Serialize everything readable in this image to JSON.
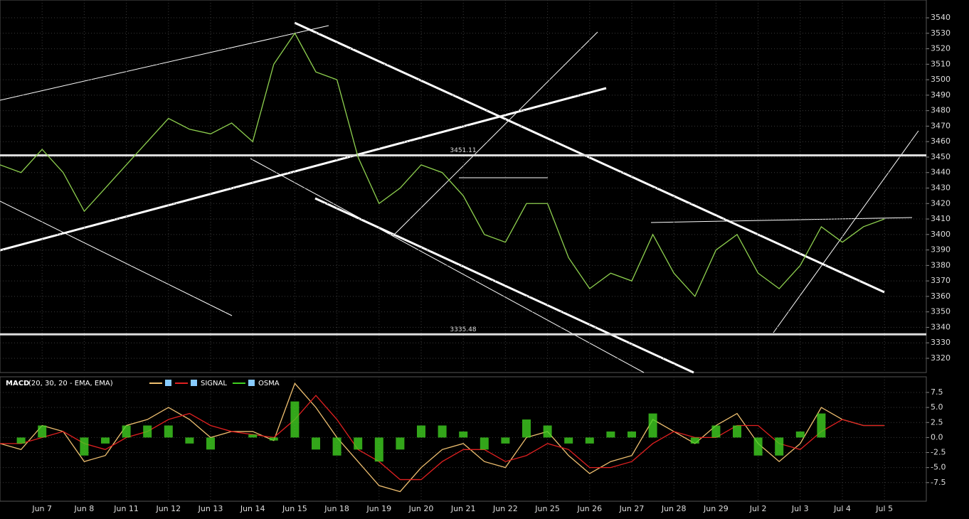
{
  "chart_data": [
    {
      "type": "line",
      "categories": [
        null,
        null,
        "Jun 7",
        null,
        "Jun 8",
        null,
        "Jun 11",
        null,
        "Jun 12",
        null,
        "Jun 13",
        null,
        "Jun 14",
        null,
        "Jun 15",
        null,
        "Jun 18",
        null,
        "Jun 19",
        null,
        "Jun 20",
        null,
        "Jun 21",
        null,
        "Jun 22",
        null,
        "Jun 25",
        null,
        "Jun 26",
        null,
        "Jun 27",
        null,
        "Jun 28",
        null,
        "Jun 29",
        null,
        "Jul 2",
        null,
        "Jul 3",
        null,
        "Jul 4",
        null,
        "Jul 5"
      ],
      "series": [
        {
          "color": "#8fd14f",
          "values": [
            3445,
            3440,
            3455,
            3440,
            3415,
            3430,
            3445,
            3460,
            3475,
            3468,
            3465,
            3472,
            3460,
            3510,
            3530,
            3505,
            3500,
            3450,
            3420,
            3430,
            3445,
            3440,
            3425,
            3400,
            3395,
            3420,
            3420,
            3385,
            3365,
            3375,
            3370,
            3400,
            3375,
            3360,
            3390,
            3400,
            3375,
            3365,
            3380,
            3405,
            3395,
            3405,
            3410
          ]
        }
      ],
      "levels": [
        3451.11,
        3335.48
      ],
      "ylim": [
        3310.8,
        3551.5
      ],
      "yticks": [
        3320,
        3330,
        3340,
        3350,
        3360,
        3370,
        3380,
        3390,
        3400,
        3410,
        3420,
        3430,
        3440,
        3450,
        3460,
        3470,
        3480,
        3490,
        3500,
        3510,
        3520,
        3530,
        3540
      ],
      "grid": true
    },
    {
      "type": "line",
      "title": "MACD",
      "subtitle": "(20, 30, 20 - EMA, EMA)",
      "series": [
        {
          "color": "#f0c070",
          "values": [
            -1,
            -2,
            2,
            1,
            -4,
            -3,
            2,
            3,
            5,
            3,
            0,
            1,
            1,
            -0.5,
            9,
            5,
            0,
            -4,
            -8,
            -9,
            -5,
            -2,
            -1,
            -4,
            -5,
            0,
            1,
            -3,
            -6,
            -4,
            -3,
            3,
            1,
            -1,
            2,
            4,
            -1,
            -4,
            -1,
            5,
            3,
            2,
            2
          ]
        },
        {
          "name": "SIGNAL",
          "color": "#e02020",
          "values": [
            -1,
            -1,
            0,
            1,
            -1,
            -2,
            0,
            1,
            3,
            4,
            2,
            1,
            0.5,
            0,
            3,
            7,
            3,
            -2,
            -4,
            -7,
            -7,
            -4,
            -2,
            -2,
            -4,
            -3,
            -1,
            -2,
            -5,
            -5,
            -4,
            -1,
            1,
            0,
            0,
            2,
            2,
            -1,
            -2,
            1,
            3,
            2,
            2
          ]
        },
        {
          "name": "OSMA",
          "type": "bar",
          "color": "#40d020",
          "values": [
            0,
            -1,
            2,
            0,
            -3,
            -1,
            2,
            2,
            2,
            -1,
            -2,
            0,
            0.5,
            -0.5,
            6,
            -2,
            -3,
            -2,
            -4,
            -2,
            2,
            2,
            1,
            -2,
            -1,
            3,
            2,
            -1,
            -1,
            1,
            1,
            4,
            0,
            -1,
            2,
            2,
            -3,
            -3,
            1,
            4,
            0,
            0,
            0
          ]
        }
      ],
      "ylim": [
        -10.6,
        10.1
      ],
      "yticks": [
        {
          "value": -7.5,
          "label": "-7.5"
        },
        {
          "value": -5,
          "label": "-5.0"
        },
        -2.5,
        {
          "value": 0,
          "label": "0.0"
        },
        2.5,
        {
          "value": 5,
          "label": "5.0"
        },
        7.5
      ],
      "grid": true
    }
  ]
}
